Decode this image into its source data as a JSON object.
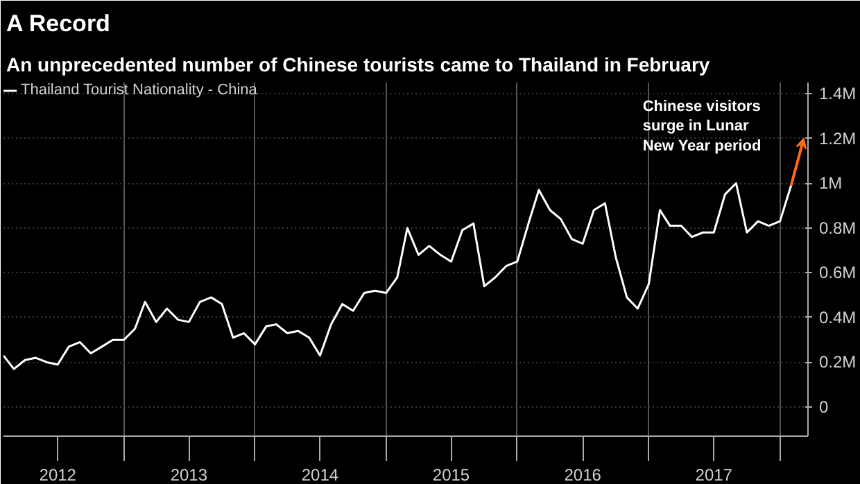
{
  "chart_data": {
    "type": "line",
    "title": "A Record",
    "subtitle": "An unprecedented number of Chinese tourists came to Thailand in February",
    "x": [
      "2012-02",
      "2012-03",
      "2012-04",
      "2012-05",
      "2012-06",
      "2012-07",
      "2012-08",
      "2012-09",
      "2012-10",
      "2012-11",
      "2012-12",
      "2013-01",
      "2013-02",
      "2013-03",
      "2013-04",
      "2013-05",
      "2013-06",
      "2013-07",
      "2013-08",
      "2013-09",
      "2013-10",
      "2013-11",
      "2013-12",
      "2014-01",
      "2014-02",
      "2014-03",
      "2014-04",
      "2014-05",
      "2014-06",
      "2014-07",
      "2014-08",
      "2014-09",
      "2014-10",
      "2014-11",
      "2014-12",
      "2015-01",
      "2015-02",
      "2015-03",
      "2015-04",
      "2015-05",
      "2015-06",
      "2015-07",
      "2015-08",
      "2015-09",
      "2015-10",
      "2015-11",
      "2015-12",
      "2016-01",
      "2016-02",
      "2016-03",
      "2016-04",
      "2016-05",
      "2016-06",
      "2016-07",
      "2016-08",
      "2016-09",
      "2016-10",
      "2016-11",
      "2016-12",
      "2017-01",
      "2017-02",
      "2017-03",
      "2017-04",
      "2017-05",
      "2017-06",
      "2017-07",
      "2017-08",
      "2017-09",
      "2017-10",
      "2017-11",
      "2017-12",
      "2018-01",
      "2018-02"
    ],
    "series": [
      {
        "name": "Thailand Tourist Nationality - China",
        "color": "#ffffff",
        "values": [
          0.23,
          0.17,
          0.21,
          0.22,
          0.2,
          0.19,
          0.27,
          0.29,
          0.24,
          0.27,
          0.3,
          0.3,
          0.35,
          0.47,
          0.38,
          0.44,
          0.39,
          0.38,
          0.47,
          0.49,
          0.46,
          0.31,
          0.33,
          0.28,
          0.36,
          0.37,
          0.33,
          0.34,
          0.31,
          0.23,
          0.37,
          0.46,
          0.43,
          0.51,
          0.52,
          0.51,
          0.58,
          0.8,
          0.68,
          0.72,
          0.68,
          0.65,
          0.79,
          0.82,
          0.54,
          0.58,
          0.63,
          0.65,
          0.82,
          0.97,
          0.88,
          0.84,
          0.75,
          0.73,
          0.88,
          0.91,
          0.67,
          0.49,
          0.44,
          0.55,
          0.88,
          0.81,
          0.81,
          0.76,
          0.78,
          0.78,
          0.95,
          1.0,
          0.78,
          0.83,
          0.81,
          0.83,
          0.99
        ]
      }
    ],
    "xlim": [
      "2012-02-01",
      "2018-03-20"
    ],
    "xticks": [
      {
        "value": "2012-07-01",
        "label": "2012"
      },
      {
        "value": "2013-01-01",
        "label": null
      },
      {
        "value": "2013-07-01",
        "label": "2013"
      },
      {
        "value": "2014-01-01",
        "label": null
      },
      {
        "value": "2014-07-01",
        "label": "2014"
      },
      {
        "value": "2015-01-01",
        "label": null
      },
      {
        "value": "2015-07-01",
        "label": "2015"
      },
      {
        "value": "2016-01-01",
        "label": null
      },
      {
        "value": "2016-07-01",
        "label": "2016"
      },
      {
        "value": "2017-01-01",
        "label": null
      },
      {
        "value": "2017-07-01",
        "label": "2017"
      },
      {
        "value": "2018-01-01",
        "label": null
      }
    ],
    "ylim": [
      -0.13,
      1.45
    ],
    "yticks": [
      0,
      {
        "value": 0.2,
        "label": "0.2M"
      },
      {
        "value": 0.4,
        "label": "0.4M"
      },
      {
        "value": 0.6,
        "label": "0.6M"
      },
      {
        "value": 0.8,
        "label": "0.8M"
      },
      {
        "value": 1,
        "label": "1M"
      },
      {
        "value": 1.2,
        "label": "1.2M"
      },
      {
        "value": 1.4,
        "label": "1.4M"
      }
    ],
    "grid": true,
    "legend": "top left",
    "annotations": [
      "Chinese visitors surge in Lunar New Year period"
    ]
  }
}
